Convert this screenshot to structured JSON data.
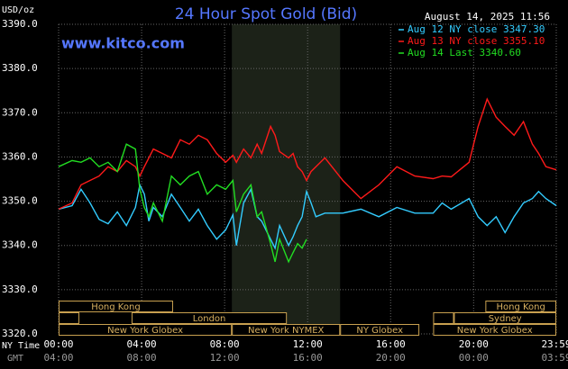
{
  "chart_data": {
    "type": "line",
    "title": "24 Hour Spot Gold (Bid)",
    "timestamp": "August 14, 2025 11:56",
    "source": "www.kitco.com",
    "y_label": "USD/oz",
    "x_label": "NY Time",
    "x2_label": "GMT",
    "grid": true,
    "legend": "top-right",
    "xlim": [
      0,
      1439
    ],
    "xticks": [
      {
        "value": 0,
        "label": "00:00"
      },
      {
        "value": 240,
        "label": "04:00"
      },
      {
        "value": 480,
        "label": "08:00"
      },
      {
        "value": 720,
        "label": "12:00"
      },
      {
        "value": 960,
        "label": "16:00"
      },
      {
        "value": 1200,
        "label": "20:00"
      },
      {
        "value": 1439,
        "label": "23:59"
      }
    ],
    "x2_ticklabels": [
      "04:00",
      "08:00",
      "12:00",
      "16:00",
      "20:00",
      "00:00",
      "03:59"
    ],
    "ylim": [
      3320,
      3390
    ],
    "yticks": [
      {
        "value": 3320,
        "label": "3320.0"
      },
      {
        "value": 3330,
        "label": "3330.0"
      },
      {
        "value": 3340,
        "label": "3340.0"
      },
      {
        "value": 3350,
        "label": "3350.0"
      },
      {
        "value": 3360,
        "label": "3360.0"
      },
      {
        "value": 3370,
        "label": "3370.0"
      },
      {
        "value": 3380,
        "label": "3380.0"
      },
      {
        "value": 3390,
        "label": "3390.0"
      }
    ],
    "shade": [
      501,
      814
    ],
    "x": [
      0,
      39,
      65,
      91,
      117,
      143,
      170,
      196,
      222,
      235,
      248,
      261,
      274,
      300,
      326,
      352,
      378,
      404,
      430,
      457,
      483,
      504,
      514,
      535,
      556,
      574,
      587,
      613,
      626,
      639,
      665,
      678,
      691,
      704,
      717,
      730,
      744,
      770,
      822,
      874,
      926,
      978,
      1030,
      1083,
      1109,
      1135,
      1187,
      1213,
      1239,
      1265,
      1291,
      1317,
      1344,
      1370,
      1388,
      1409,
      1439
    ],
    "series": [
      {
        "name": "Aug 12 NY close 3347.30",
        "color": "#33ccff",
        "values": [
          3348.2,
          3349.0,
          3352.7,
          3349.6,
          3345.9,
          3344.9,
          3347.6,
          3344.5,
          3348.6,
          3353.7,
          3351.6,
          3345.5,
          3348.6,
          3346.5,
          3351.6,
          3348.6,
          3345.5,
          3348.2,
          3344.5,
          3341.4,
          3343.5,
          3346.9,
          3340.0,
          3349.6,
          3352.7,
          3346.5,
          3345.5,
          3341.4,
          3339.4,
          3344.5,
          3340.0,
          3342.0,
          3344.5,
          3346.5,
          3352.2,
          3349.6,
          3346.5,
          3347.3,
          3347.3,
          3348.2,
          3346.5,
          3348.6,
          3347.3,
          3347.3,
          3349.6,
          3348.2,
          3350.6,
          3346.5,
          3344.5,
          3346.5,
          3342.9,
          3346.5,
          3349.6,
          3350.6,
          3352.2,
          3350.6,
          3349.0
        ]
      },
      {
        "name": "Aug 13 NY close 3355.10",
        "color": "#ff1a1a",
        "values": [
          3348.2,
          3349.6,
          3353.7,
          3354.7,
          3355.7,
          3357.8,
          3356.7,
          3359.2,
          3357.8,
          3355.7,
          3357.8,
          3359.8,
          3361.8,
          3360.8,
          3359.8,
          3363.9,
          3362.9,
          3364.9,
          3363.9,
          3360.8,
          3358.8,
          3360.4,
          3358.8,
          3361.8,
          3359.8,
          3362.9,
          3360.8,
          3366.9,
          3364.9,
          3361.2,
          3359.8,
          3360.8,
          3357.8,
          3356.7,
          3354.7,
          3356.7,
          3357.8,
          3359.8,
          3354.7,
          3350.6,
          3353.7,
          3357.8,
          3355.7,
          3355.1,
          3355.7,
          3355.5,
          3358.8,
          3366.9,
          3373.1,
          3369.0,
          3366.9,
          3364.9,
          3368.0,
          3362.9,
          3360.8,
          3357.8,
          3357.1
        ]
      },
      {
        "name": "Aug 14 Last 3340.60",
        "color": "#22dd22",
        "values": [
          3357.8,
          3359.2,
          3358.8,
          3359.8,
          3357.8,
          3358.8,
          3356.7,
          3362.9,
          3361.8,
          3352.7,
          3348.6,
          3346.5,
          3349.6,
          3345.5,
          3355.7,
          3353.7,
          3355.7,
          3356.7,
          3351.6,
          3353.7,
          3352.7,
          3354.7,
          3347.6,
          3351.6,
          3353.7,
          3346.5,
          3347.6,
          3340.4,
          3336.3,
          3341.4,
          3336.3,
          3338.4,
          3340.4,
          3339.4,
          3341.4,
          null,
          null,
          null,
          null,
          null,
          null,
          null,
          null,
          null,
          null,
          null,
          null,
          null,
          null,
          null,
          null,
          null,
          null,
          null,
          null,
          null,
          null
        ]
      }
    ],
    "sessions": [
      {
        "label": "Hong Kong",
        "row": 0,
        "start": 0,
        "end": 331
      },
      {
        "label": "Hong Kong",
        "row": 0,
        "start": 1234,
        "end": 1439
      },
      {
        "label": null,
        "row": 1,
        "start": 0,
        "end": 60
      },
      {
        "label": "London",
        "row": 1,
        "start": 211,
        "end": 660
      },
      {
        "label": null,
        "row": 1,
        "start": 1083,
        "end": 1143
      },
      {
        "label": "Sydney",
        "row": 1,
        "start": 1143,
        "end": 1439
      },
      {
        "label": "New York Globex",
        "row": 2,
        "start": 0,
        "end": 501
      },
      {
        "label": "New York NYMEX",
        "row": 2,
        "start": 501,
        "end": 814
      },
      {
        "label": "NY Globex",
        "row": 2,
        "start": 814,
        "end": 1043
      },
      {
        "label": "New York Globex",
        "row": 2,
        "start": 1083,
        "end": 1439
      }
    ]
  }
}
